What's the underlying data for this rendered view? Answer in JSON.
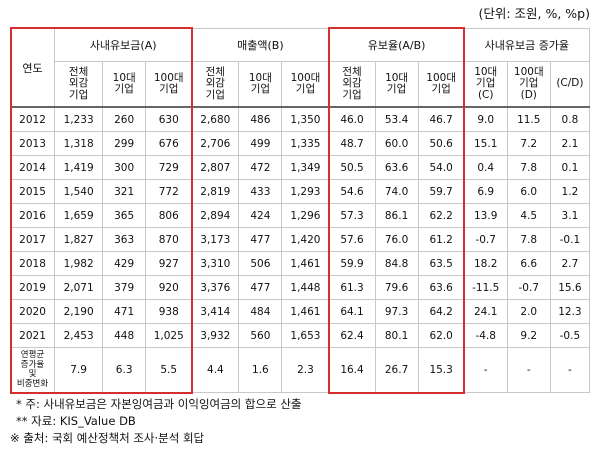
{
  "unit_label": "(단위: 조원, %, %p)",
  "header": {
    "year": "연도",
    "groups": [
      "사내유보금(A)",
      "매출액(B)",
      "유보율(A/B)",
      "사내유보금 증가율"
    ],
    "sub": [
      "전체\n외감\n기업",
      "10대\n기업",
      "100대\n기업",
      "전체\n외감\n기업",
      "10대\n기업",
      "100대\n기업",
      "전체\n외감\n기업",
      "10대\n기업",
      "100대\n기업",
      "10대\n기업\n(C)",
      "100대\n기업\n(D)",
      "(C/D)"
    ]
  },
  "rows": [
    [
      "2012",
      "1,233",
      "260",
      "630",
      "2,680",
      "486",
      "1,350",
      "46.0",
      "53.4",
      "46.7",
      "9.0",
      "11.5",
      "0.8"
    ],
    [
      "2013",
      "1,318",
      "299",
      "676",
      "2,706",
      "499",
      "1,335",
      "48.7",
      "60.0",
      "50.6",
      "15.1",
      "7.2",
      "2.1"
    ],
    [
      "2014",
      "1,419",
      "300",
      "729",
      "2,807",
      "472",
      "1,349",
      "50.5",
      "63.6",
      "54.0",
      "0.4",
      "7.8",
      "0.1"
    ],
    [
      "2015",
      "1,540",
      "321",
      "772",
      "2,819",
      "433",
      "1,293",
      "54.6",
      "74.0",
      "59.7",
      "6.9",
      "6.0",
      "1.2"
    ],
    [
      "2016",
      "1,659",
      "365",
      "806",
      "2,894",
      "424",
      "1,296",
      "57.3",
      "86.1",
      "62.2",
      "13.9",
      "4.5",
      "3.1"
    ],
    [
      "2017",
      "1,827",
      "363",
      "870",
      "3,173",
      "477",
      "1,420",
      "57.6",
      "76.0",
      "61.2",
      "-0.7",
      "7.8",
      "-0.1"
    ],
    [
      "2018",
      "1,982",
      "429",
      "927",
      "3,310",
      "506",
      "1,461",
      "59.9",
      "84.8",
      "63.5",
      "18.2",
      "6.6",
      "2.7"
    ],
    [
      "2019",
      "2,071",
      "379",
      "920",
      "3,376",
      "477",
      "1,448",
      "61.3",
      "79.6",
      "63.6",
      "-11.5",
      "-0.7",
      "15.6"
    ],
    [
      "2020",
      "2,190",
      "471",
      "938",
      "3,414",
      "484",
      "1,461",
      "64.1",
      "97.3",
      "64.2",
      "24.1",
      "2.0",
      "12.3"
    ],
    [
      "2021",
      "2,453",
      "448",
      "1,025",
      "3,932",
      "560",
      "1,653",
      "62.4",
      "80.1",
      "62.0",
      "-4.8",
      "9.2",
      "-0.5"
    ]
  ],
  "last_row": {
    "label": "연평균\n증가율\n및\n비중변화",
    "values": [
      "7.9",
      "6.3",
      "5.5",
      "4.4",
      "1.6",
      "2.3",
      "16.4",
      "26.7",
      "15.3",
      "-",
      "-",
      "-"
    ]
  },
  "notes": [
    "*   주: 사내유보금은 자본잉여금과 이익잉여금의 합으로 산출",
    "**  자료: KIS_Value DB",
    "※ 출처: 국회 예산정책처 조사·분석 회답"
  ],
  "highlight_color": "#d32f2f"
}
